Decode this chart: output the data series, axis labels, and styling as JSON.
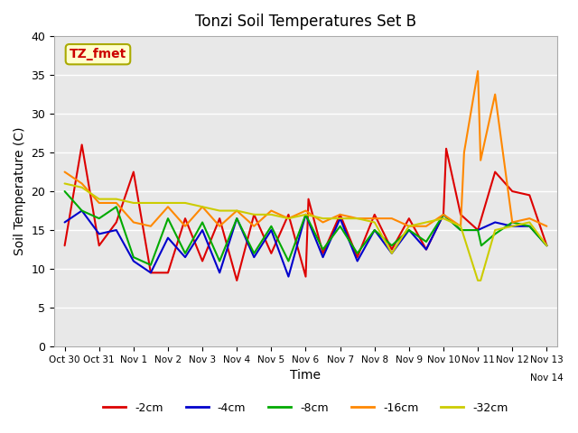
{
  "title": "Tonzi Soil Temperatures Set B",
  "xlabel": "Time",
  "ylabel": "Soil Temperature (C)",
  "annotation_label": "TZ_fmet",
  "ylim": [
    0,
    40
  ],
  "bg_color": "#e8e8e8",
  "grid_color": "white",
  "series": {
    "neg2cm": {
      "color": "#dd0000",
      "label": "-2cm",
      "x": [
        0,
        0.5,
        1.0,
        1.5,
        2.0,
        2.5,
        3.0,
        3.5,
        4.0,
        4.5,
        5.0,
        5.5,
        6.0,
        6.5,
        7.0,
        7.08,
        7.5,
        8.0,
        8.5,
        9.0,
        9.5,
        10.0,
        10.5,
        11.0,
        11.08,
        11.5,
        12.0,
        12.5,
        13.0,
        13.5,
        14.0
      ],
      "y": [
        13.0,
        26.0,
        13.0,
        16.0,
        22.5,
        9.5,
        9.5,
        16.5,
        11.0,
        16.5,
        8.5,
        17.0,
        12.0,
        17.0,
        9.0,
        19.0,
        12.0,
        17.0,
        11.5,
        17.0,
        12.5,
        16.5,
        12.5,
        17.0,
        25.5,
        17.0,
        15.0,
        22.5,
        20.0,
        19.5,
        13.0
      ]
    },
    "neg4cm": {
      "color": "#0000cc",
      "label": "-4cm",
      "x": [
        0,
        0.5,
        1.0,
        1.5,
        2.0,
        2.5,
        3.0,
        3.5,
        4.0,
        4.5,
        5.0,
        5.5,
        6.0,
        6.5,
        7.0,
        7.5,
        8.0,
        8.5,
        9.0,
        9.5,
        10.0,
        10.5,
        11.0,
        11.5,
        12.0,
        12.5,
        13.0,
        13.5,
        14.0
      ],
      "y": [
        16.0,
        17.5,
        14.5,
        15.0,
        11.0,
        9.5,
        14.0,
        11.5,
        15.0,
        9.5,
        16.5,
        11.5,
        15.0,
        9.0,
        17.0,
        11.5,
        16.5,
        11.0,
        15.0,
        12.0,
        15.0,
        12.5,
        17.0,
        15.0,
        15.0,
        16.0,
        15.5,
        15.5,
        13.0
      ]
    },
    "neg8cm": {
      "color": "#00aa00",
      "label": "-8cm",
      "x": [
        0,
        0.5,
        1.0,
        1.5,
        2.0,
        2.5,
        3.0,
        3.5,
        4.0,
        4.5,
        5.0,
        5.5,
        6.0,
        6.5,
        7.0,
        7.5,
        8.0,
        8.5,
        9.0,
        9.5,
        10.0,
        10.5,
        11.0,
        11.5,
        12.0,
        12.1,
        12.5,
        13.0,
        13.5,
        14.0
      ],
      "y": [
        20.0,
        17.5,
        16.5,
        18.0,
        11.5,
        10.5,
        16.5,
        12.0,
        16.0,
        11.0,
        16.5,
        12.0,
        15.5,
        11.0,
        17.0,
        12.5,
        15.5,
        12.0,
        15.0,
        13.0,
        15.0,
        13.5,
        17.0,
        15.0,
        15.0,
        13.0,
        14.5,
        16.0,
        15.5,
        13.0
      ]
    },
    "neg16cm": {
      "color": "#ff8800",
      "label": "-16cm",
      "x": [
        0,
        0.5,
        1.0,
        1.5,
        2.0,
        2.5,
        3.0,
        3.5,
        4.0,
        4.5,
        5.0,
        5.5,
        6.0,
        6.5,
        7.0,
        7.5,
        8.0,
        8.5,
        9.0,
        9.5,
        10.0,
        10.5,
        11.0,
        11.5,
        11.6,
        12.0,
        12.08,
        12.5,
        13.0,
        13.5,
        14.0
      ],
      "y": [
        22.5,
        21.0,
        18.5,
        18.5,
        16.0,
        15.5,
        18.0,
        15.5,
        18.0,
        15.5,
        17.5,
        15.5,
        17.5,
        16.5,
        17.5,
        16.0,
        17.0,
        16.5,
        16.5,
        16.5,
        15.5,
        15.5,
        17.0,
        15.5,
        25.0,
        35.5,
        24.0,
        32.5,
        16.0,
        16.5,
        15.5
      ]
    },
    "neg32cm": {
      "color": "#cccc00",
      "label": "-32cm",
      "x": [
        0,
        0.5,
        1.0,
        1.5,
        2.0,
        2.5,
        3.0,
        3.5,
        4.0,
        4.5,
        5.0,
        5.5,
        6.0,
        6.5,
        7.0,
        7.5,
        8.0,
        8.5,
        9.0,
        9.5,
        10.0,
        11.0,
        11.5,
        12.0,
        12.08,
        12.5,
        13.0,
        13.5,
        14.0
      ],
      "y": [
        21.0,
        20.5,
        19.0,
        19.0,
        18.5,
        18.5,
        18.5,
        18.5,
        18.0,
        17.5,
        17.5,
        17.0,
        17.0,
        16.5,
        17.0,
        16.5,
        16.5,
        16.5,
        16.0,
        12.0,
        15.5,
        16.5,
        15.5,
        8.5,
        8.5,
        15.0,
        15.5,
        16.0,
        13.0
      ]
    }
  },
  "xtick_positions": [
    0,
    1,
    2,
    3,
    4,
    5,
    6,
    7,
    8,
    9,
    10,
    11,
    12,
    13,
    14
  ],
  "xtick_labels": [
    "Oct 30",
    "Oct 31",
    "Nov 1",
    "Nov 2",
    "Nov 3",
    "Nov 4",
    "Nov 5",
    "Nov 6",
    "Nov 7",
    "Nov 8",
    "Nov 9",
    "Nov 10",
    "Nov 11",
    "Nov 12",
    "Nov 13"
  ]
}
